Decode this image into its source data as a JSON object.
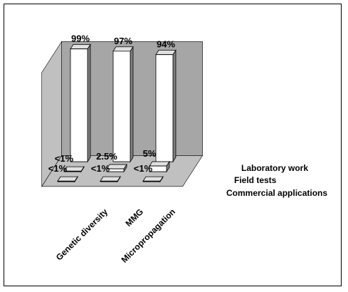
{
  "chart_data": {
    "type": "bar",
    "title": "",
    "categories": [
      "Genetic diversity",
      "MMG",
      "Micropropagation"
    ],
    "series": [
      {
        "name": "Laboratory work",
        "values": [
          99,
          97,
          94
        ],
        "labels": [
          "99%",
          "97%",
          "94%"
        ]
      },
      {
        "name": "Field tests",
        "values": [
          0.5,
          2.5,
          5
        ],
        "labels": [
          "<1%",
          "2.5%",
          "5%"
        ]
      },
      {
        "name": "Commercial applications",
        "values": [
          0.5,
          0.5,
          0.5
        ],
        "labels": [
          "<1%",
          "<1%",
          "<1%"
        ]
      }
    ],
    "ylim": [
      0,
      100
    ],
    "grid": false,
    "style": {
      "back_wall": "#a6a6a6",
      "floor": "#c0c0c0",
      "bar_front": "#ffffff",
      "bar_side": "#808080",
      "bar_top": "#e0e0e0"
    }
  }
}
